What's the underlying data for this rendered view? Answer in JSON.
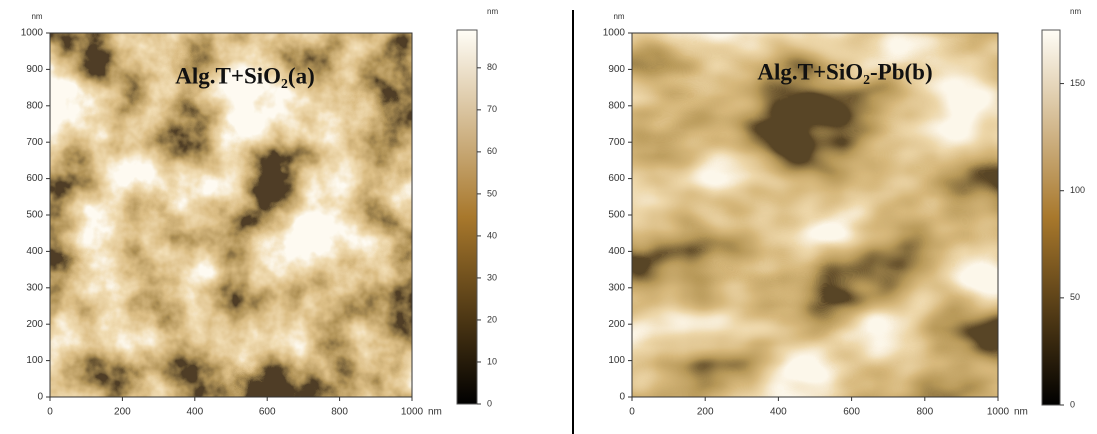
{
  "chart_data": [
    {
      "type": "afm",
      "title": "Alg.T+SiO₂(a)",
      "x_unit": "nm",
      "y_unit": "nm",
      "colorbar_unit": "nm",
      "xlim": [
        0,
        1000
      ],
      "xticks": [
        0,
        200,
        400,
        600,
        800,
        1000
      ],
      "ylim": [
        0,
        1000
      ],
      "yticks": [
        0,
        100,
        200,
        300,
        400,
        500,
        600,
        700,
        800,
        900,
        1000
      ],
      "clim": [
        0,
        89
      ],
      "cticks": [
        0,
        10,
        20,
        30,
        40,
        50,
        60,
        70,
        80
      ]
    },
    {
      "type": "afm",
      "title": "Alg.T+SiO₂-Pb(b)",
      "x_unit": "nm",
      "y_unit": "nm",
      "colorbar_unit": "nm",
      "xlim": [
        0,
        1000
      ],
      "xticks": [
        0,
        200,
        400,
        600,
        800,
        1000
      ],
      "ylim": [
        0,
        1000
      ],
      "yticks": [
        0,
        100,
        200,
        300,
        400,
        500,
        600,
        700,
        800,
        900,
        1000
      ],
      "clim": [
        0,
        175
      ],
      "cticks": [
        0,
        50,
        100,
        150
      ]
    }
  ]
}
